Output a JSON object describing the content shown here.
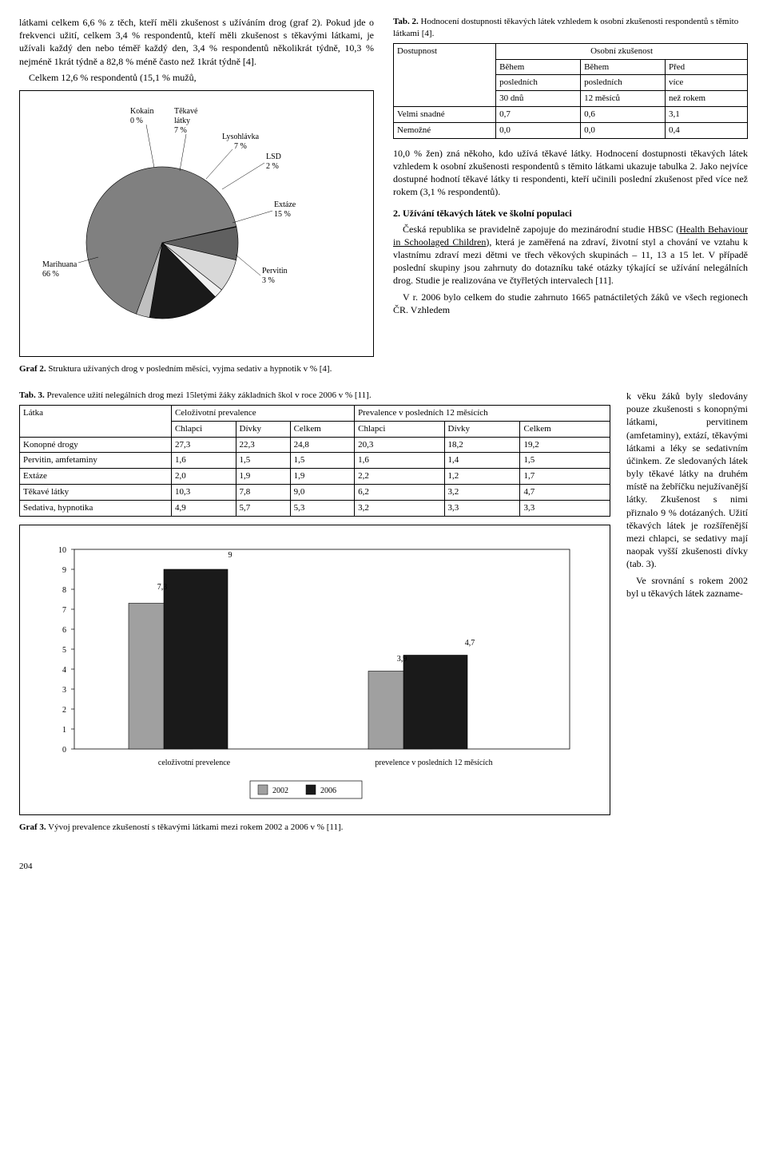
{
  "left_para1": "látkami celkem 6,6 % z těch, kteří měli zkušenost s užíváním drog (graf 2). Pokud jde o frekvenci užití, celkem 3,4 % respondentů, kteří měli zkušenost s těkavými látkami, je užívali každý den nebo téměř každý den, 3,4 % respondentů několikrát týdně, 10,3 % nejméně 1krát týdně a 82,8 % méně často než 1krát týdně [4].",
  "left_para2": "Celkem 12,6 % respondentů (15,1 % mužů,",
  "pie_chart": {
    "slices": [
      {
        "label": "Marihuana",
        "pct": "66 %",
        "color": "#808080",
        "start": 0,
        "end": 237.6
      },
      {
        "label": "Kokain",
        "pct": "0 %",
        "color": "#404040",
        "start": 237.6,
        "end": 238
      },
      {
        "label": "Těkavé látky",
        "pct": "7 %",
        "color": "#606060",
        "start": 238,
        "end": 263.2
      },
      {
        "label": "Lysohlávka",
        "pct": "7 %",
        "color": "#d8d8d8",
        "start": 263.2,
        "end": 288.4
      },
      {
        "label": "LSD",
        "pct": "2 %",
        "color": "#f0f0f0",
        "start": 288.4,
        "end": 295.6
      },
      {
        "label": "Extáze",
        "pct": "15 %",
        "color": "#1a1a1a",
        "start": 295.6,
        "end": 349.6
      },
      {
        "label": "Pervitin",
        "pct": "3 %",
        "color": "#c0c0c0",
        "start": 349.6,
        "end": 360
      }
    ],
    "labels": {
      "marihuana": "Marihuana",
      "marihuana_pct": "66 %",
      "kokain": "Kokain",
      "kokain_pct": "0 %",
      "tekave": "Těkavé",
      "tekave2": "látky",
      "tekave_pct": "7 %",
      "lyso": "Lysohlávka",
      "lyso_pct": "7 %",
      "lsd": "LSD",
      "lsd_pct": "2 %",
      "extaze": "Extáze",
      "extaze_pct": "15 %",
      "pervitin": "Pervitin",
      "pervitin_pct": "3 %"
    }
  },
  "graf2_caption": "Graf 2. Struktura užívaných drog v posledním měsíci, vyjma sedativ a hypnotik v % [4].",
  "tab2_title": "Tab. 2. Hodnocení dostupnosti těkavých látek vzhledem k osobní zkušenosti respondentů s těmito látkami [4].",
  "tab2": {
    "h_dostupnost": "Dostupnost",
    "h_osobni": "Osobní zkušenost",
    "h_behem1": "Během",
    "h_behem2": "Během",
    "h_pred": "Před",
    "h_poslednich1": "posledních",
    "h_poslednich2": "posledních",
    "h_vice": "více",
    "h_30dnu": "30 dnů",
    "h_12mes": "12 měsíců",
    "h_nezrokem": "než rokem",
    "r1_label": "Velmi snadné",
    "r1_v1": "0,7",
    "r1_v2": "0,6",
    "r1_v3": "3,1",
    "r2_label": "Nemožné",
    "r2_v1": "0,0",
    "r2_v2": "0,0",
    "r2_v3": "0,4"
  },
  "right_para1": "10,0 % žen) zná někoho, kdo užívá těkavé látky. Hodnocení dostupnosti těkavých látek vzhledem k osobní zkušenosti respondentů s těmito látkami ukazuje tabulka 2. Jako nejvíce dostupné hodnotí těkavé látky ti respondenti, kteří učinili poslední zkušenost před více než rokem (3,1 % respondentů).",
  "right_h2": "2. Užívání těkavých látek ve školní populaci",
  "right_para2": "Česká republika se pravidelně zapojuje do mezinárodní studie HBSC (Health Behaviour in Schoolaged Children), která je zaměřená na zdraví, životní styl a chování se vztahu k vlastnímu zdraví mezi dětmi ve třech věkových skupinách – 11, 13 a 15 let. V případě poslední skupiny jsou zahrnuty do dotazníku také otázky týkající se užívání nelegálních drog. Studie je realizována ve čtyřletých intervalech [11].",
  "right_para3": "V r. 2006 bylo celkem do studie zahrnuto 1665 patnáctiletých žáků ve všech regionech ČR. Vzhledem",
  "tab3_title": "Tab. 3. Prevalence užití nelegálních drog mezi 15letými žáky základních škol v roce 2006 v % [11].",
  "tab3": {
    "h_latka": "Látka",
    "h_celoziv": "Celoživotní prevalence",
    "h_preval12": "Prevalence v posledních 12 měsících",
    "h_chlapci": "Chlapci",
    "h_divky": "Dívky",
    "h_celkem": "Celkem",
    "rows": [
      {
        "l": "Konopné drogy",
        "c1": "27,3",
        "c2": "22,3",
        "c3": "24,8",
        "c4": "20,3",
        "c5": "18,2",
        "c6": "19,2"
      },
      {
        "l": "Pervitin, amfetaminy",
        "c1": "1,6",
        "c2": "1,5",
        "c3": "1,5",
        "c4": "1,6",
        "c5": "1,4",
        "c6": "1,5"
      },
      {
        "l": "Extáze",
        "c1": "2,0",
        "c2": "1,9",
        "c3": "1,9",
        "c4": "2,2",
        "c5": "1,2",
        "c6": "1,7"
      },
      {
        "l": "Těkavé látky",
        "c1": "10,3",
        "c2": "7,8",
        "c3": "9,0",
        "c4": "6,2",
        "c5": "3,2",
        "c6": "4,7"
      },
      {
        "l": "Sedativa, hypnotika",
        "c1": "4,9",
        "c2": "5,7",
        "c3": "5,3",
        "c4": "3,2",
        "c5": "3,3",
        "c6": "3,3"
      }
    ]
  },
  "bar_chart": {
    "ymax": 10,
    "ytick_step": 1,
    "categories": [
      "celoživotní prevelence",
      "prevelence v posledních 12 měsících"
    ],
    "series": [
      {
        "name": "2002",
        "color": "#a0a0a0",
        "values": [
          7.3,
          3.9
        ]
      },
      {
        "name": "2006",
        "color": "#1a1a1a",
        "values": [
          9,
          4.7
        ]
      }
    ],
    "value_labels": [
      "7,3",
      "9",
      "3,9",
      "4,7"
    ],
    "legend_2002": "2002",
    "legend_2006": "2006",
    "cat1": "celoživotní prevelence",
    "cat2": "prevelence v posledních 12 měsících",
    "v1": "7,3",
    "v2": "9",
    "v3": "3,9",
    "v4": "4,7"
  },
  "graf3_caption": "Graf 3. Vývoj prevalence zkušeností s těkavými látkami mezi rokem 2002 a 2006 v % [11].",
  "side_text": "k věku žáků byly sledovány pouze zkušenosti s konopnými látkami, pervitinem (amfetaminy), extází, těkavými látkami a léky se sedativním účinkem. Ze sledovaných látek byly těkavé látky na druhém místě na žebříčku nejužívanější látky. Zkušenost s nimi přiznalo 9 % dotázaných. Užití těkavých látek je rozšířenější mezi chlapci, se sedativy mají naopak vyšší zkušenosti dívky (tab. 3).",
  "side_text2": "Ve srovnání s rokem 2002 byl u těkavých látek zazname-",
  "page_num": "204"
}
